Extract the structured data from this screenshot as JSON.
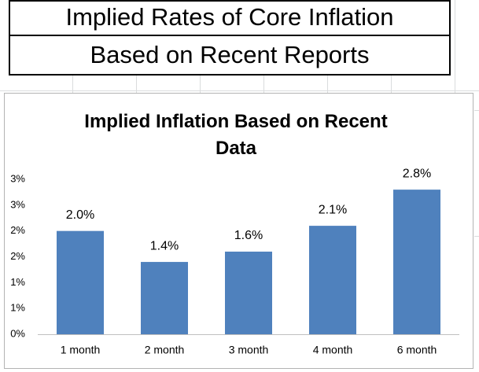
{
  "header": {
    "title": "Implied Rates of Core Inflation",
    "subtitle": "Based on Recent Reports"
  },
  "chart_data": {
    "type": "bar",
    "title": "Implied Inflation Based on Recent Data",
    "categories": [
      "1 month",
      "2 month",
      "3 month",
      "4 month",
      "6 month"
    ],
    "values": [
      2.0,
      1.4,
      1.6,
      2.1,
      2.8
    ],
    "value_labels": [
      "2.0%",
      "1.4%",
      "1.6%",
      "2.1%",
      "2.8%"
    ],
    "color": "#4f81bd",
    "ylim": [
      0,
      3
    ],
    "yticks": [
      {
        "value": 0,
        "label": "0%"
      },
      {
        "value": 0.5,
        "label": "1%"
      },
      {
        "value": 1,
        "label": "1%"
      },
      {
        "value": 1.5,
        "label": "2%"
      },
      {
        "value": 2,
        "label": "2%"
      },
      {
        "value": 2.5,
        "label": "3%"
      },
      {
        "value": 3,
        "label": "3%"
      }
    ],
    "grid": false
  }
}
